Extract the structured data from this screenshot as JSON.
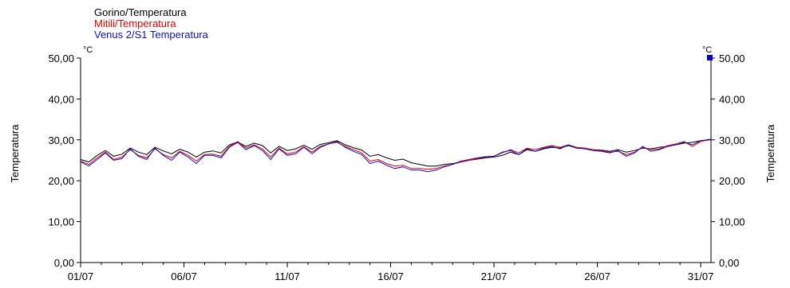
{
  "chart_data": {
    "type": "line",
    "title": "",
    "ylabel_left": "Temperatura",
    "ylabel_right": "Temperatura",
    "unit": "°C",
    "ylim": [
      0,
      50
    ],
    "xlim": [
      0,
      30.5
    ],
    "grid": false,
    "legend_position": "top-left",
    "y_ticks": [
      0,
      10,
      20,
      30,
      40,
      50
    ],
    "y_tick_labels": [
      "0,00",
      "10,00",
      "20,00",
      "30,00",
      "40,00",
      "50,00"
    ],
    "x_tick_days": [
      0,
      5,
      10,
      15,
      20,
      25,
      30
    ],
    "x_tick_labels": [
      "01/07",
      "06/07",
      "11/07",
      "16/07",
      "21/07",
      "26/07",
      "31/07"
    ],
    "right_marker_value": 50,
    "series": [
      {
        "name": "Gorino/Temperatura",
        "color": "#000000",
        "points": [
          [
            0,
            25.2
          ],
          [
            0.4,
            24.6
          ],
          [
            0.8,
            26.2
          ],
          [
            1.2,
            27.4
          ],
          [
            1.6,
            26.0
          ],
          [
            2.0,
            26.5
          ],
          [
            2.4,
            28.0
          ],
          [
            2.8,
            27.0
          ],
          [
            3.2,
            26.4
          ],
          [
            3.6,
            28.2
          ],
          [
            4.0,
            27.3
          ],
          [
            4.4,
            26.6
          ],
          [
            4.8,
            27.7
          ],
          [
            5.2,
            27.0
          ],
          [
            5.6,
            25.8
          ],
          [
            6.0,
            27.0
          ],
          [
            6.4,
            27.3
          ],
          [
            6.8,
            26.8
          ],
          [
            7.2,
            28.8
          ],
          [
            7.6,
            29.5
          ],
          [
            8.0,
            28.4
          ],
          [
            8.4,
            29.2
          ],
          [
            8.8,
            28.6
          ],
          [
            9.2,
            26.8
          ],
          [
            9.6,
            28.4
          ],
          [
            10.0,
            27.4
          ],
          [
            10.4,
            27.8
          ],
          [
            10.8,
            28.7
          ],
          [
            11.2,
            27.7
          ],
          [
            11.6,
            28.9
          ],
          [
            12.0,
            29.3
          ],
          [
            12.4,
            29.8
          ],
          [
            12.8,
            28.8
          ],
          [
            13.2,
            28.1
          ],
          [
            13.6,
            27.5
          ],
          [
            14.0,
            26.0
          ],
          [
            14.4,
            26.4
          ],
          [
            14.8,
            25.6
          ],
          [
            15.2,
            25.0
          ],
          [
            15.6,
            25.3
          ],
          [
            16.0,
            24.4
          ],
          [
            16.4,
            24.0
          ],
          [
            16.8,
            23.6
          ],
          [
            17.2,
            23.6
          ],
          [
            17.6,
            24.0
          ],
          [
            18.0,
            24.2
          ],
          [
            18.4,
            24.6
          ],
          [
            18.8,
            25.0
          ],
          [
            19.2,
            25.3
          ],
          [
            19.6,
            25.6
          ],
          [
            20.0,
            25.8
          ],
          [
            20.4,
            26.2
          ],
          [
            20.8,
            27.0
          ],
          [
            21.2,
            26.4
          ],
          [
            21.6,
            27.6
          ],
          [
            22.0,
            27.2
          ],
          [
            22.4,
            27.8
          ],
          [
            22.8,
            28.2
          ],
          [
            23.2,
            28.0
          ],
          [
            23.6,
            28.6
          ],
          [
            24.0,
            28.0
          ],
          [
            24.4,
            27.9
          ],
          [
            24.8,
            27.6
          ],
          [
            25.2,
            27.5
          ],
          [
            25.6,
            27.2
          ],
          [
            26.0,
            27.6
          ],
          [
            26.4,
            27.0
          ],
          [
            26.8,
            27.4
          ],
          [
            27.2,
            28.0
          ],
          [
            27.6,
            27.8
          ],
          [
            28.0,
            28.2
          ],
          [
            28.4,
            28.4
          ],
          [
            28.8,
            28.8
          ],
          [
            29.2,
            29.2
          ],
          [
            29.6,
            29.4
          ],
          [
            30.0,
            29.8
          ],
          [
            30.5,
            30.0
          ]
        ]
      },
      {
        "name": "Mitili/Temperatura",
        "color": "#e00000",
        "points": [
          [
            0,
            24.8
          ],
          [
            0.4,
            24.0
          ],
          [
            0.8,
            25.6
          ],
          [
            1.2,
            27.0
          ],
          [
            1.6,
            25.2
          ],
          [
            2.0,
            25.8
          ],
          [
            2.4,
            27.6
          ],
          [
            2.8,
            26.2
          ],
          [
            3.2,
            25.6
          ],
          [
            3.6,
            27.8
          ],
          [
            4.0,
            26.4
          ],
          [
            4.4,
            25.6
          ],
          [
            4.8,
            27.2
          ],
          [
            5.2,
            26.2
          ],
          [
            5.6,
            24.8
          ],
          [
            6.0,
            26.4
          ],
          [
            6.4,
            26.5
          ],
          [
            6.8,
            26.0
          ],
          [
            7.2,
            28.4
          ],
          [
            7.6,
            29.6
          ],
          [
            8.0,
            28.0
          ],
          [
            8.4,
            28.8
          ],
          [
            8.8,
            27.8
          ],
          [
            9.2,
            25.8
          ],
          [
            9.6,
            28.0
          ],
          [
            10.0,
            26.6
          ],
          [
            10.4,
            27.0
          ],
          [
            10.8,
            28.3
          ],
          [
            11.2,
            27.0
          ],
          [
            11.6,
            28.4
          ],
          [
            12.0,
            29.0
          ],
          [
            12.4,
            29.4
          ],
          [
            12.8,
            28.4
          ],
          [
            13.2,
            27.6
          ],
          [
            13.6,
            26.8
          ],
          [
            14.0,
            24.8
          ],
          [
            14.4,
            25.2
          ],
          [
            14.8,
            24.2
          ],
          [
            15.2,
            23.6
          ],
          [
            15.6,
            23.8
          ],
          [
            16.0,
            23.0
          ],
          [
            16.4,
            23.0
          ],
          [
            16.8,
            22.8
          ],
          [
            17.2,
            23.0
          ],
          [
            17.6,
            23.6
          ],
          [
            18.0,
            24.0
          ],
          [
            18.4,
            24.6
          ],
          [
            18.8,
            25.0
          ],
          [
            19.2,
            25.4
          ],
          [
            19.6,
            25.8
          ],
          [
            20.0,
            26.0
          ],
          [
            20.4,
            26.8
          ],
          [
            20.8,
            27.6
          ],
          [
            21.2,
            26.8
          ],
          [
            21.6,
            28.0
          ],
          [
            22.0,
            27.6
          ],
          [
            22.4,
            28.2
          ],
          [
            22.8,
            28.6
          ],
          [
            23.2,
            28.2
          ],
          [
            23.6,
            28.8
          ],
          [
            24.0,
            28.2
          ],
          [
            24.4,
            28.0
          ],
          [
            24.8,
            27.6
          ],
          [
            25.2,
            27.4
          ],
          [
            25.6,
            27.0
          ],
          [
            26.0,
            27.2
          ],
          [
            26.4,
            26.4
          ],
          [
            26.8,
            27.0
          ],
          [
            27.2,
            28.2
          ],
          [
            27.6,
            27.6
          ],
          [
            28.0,
            27.8
          ],
          [
            28.4,
            28.6
          ],
          [
            28.8,
            29.0
          ],
          [
            29.2,
            29.6
          ],
          [
            29.6,
            28.4
          ],
          [
            30.0,
            29.6
          ],
          [
            30.5,
            30.1
          ]
        ]
      },
      {
        "name": "Venus 2/S1 Temperatura",
        "color": "#1010c0",
        "points": [
          [
            0,
            24.6
          ],
          [
            0.4,
            23.6
          ],
          [
            0.8,
            25.2
          ],
          [
            1.2,
            26.8
          ],
          [
            1.6,
            25.0
          ],
          [
            2.0,
            25.4
          ],
          [
            2.4,
            27.8
          ],
          [
            2.8,
            26.0
          ],
          [
            3.2,
            25.2
          ],
          [
            3.6,
            28.0
          ],
          [
            4.0,
            26.2
          ],
          [
            4.4,
            25.0
          ],
          [
            4.8,
            27.0
          ],
          [
            5.2,
            25.8
          ],
          [
            5.6,
            24.2
          ],
          [
            6.0,
            26.2
          ],
          [
            6.4,
            26.2
          ],
          [
            6.8,
            25.6
          ],
          [
            7.2,
            28.2
          ],
          [
            7.6,
            29.4
          ],
          [
            8.0,
            27.6
          ],
          [
            8.4,
            28.6
          ],
          [
            8.8,
            27.4
          ],
          [
            9.2,
            25.2
          ],
          [
            9.6,
            27.8
          ],
          [
            10.0,
            26.2
          ],
          [
            10.4,
            26.6
          ],
          [
            10.8,
            28.2
          ],
          [
            11.2,
            26.6
          ],
          [
            11.6,
            28.2
          ],
          [
            12.0,
            29.0
          ],
          [
            12.4,
            29.6
          ],
          [
            12.8,
            28.2
          ],
          [
            13.2,
            27.2
          ],
          [
            13.6,
            26.4
          ],
          [
            14.0,
            24.2
          ],
          [
            14.4,
            24.8
          ],
          [
            14.8,
            23.8
          ],
          [
            15.2,
            23.0
          ],
          [
            15.6,
            23.4
          ],
          [
            16.0,
            22.6
          ],
          [
            16.4,
            22.6
          ],
          [
            16.8,
            22.2
          ],
          [
            17.2,
            22.6
          ],
          [
            17.6,
            23.4
          ],
          [
            18.0,
            24.0
          ],
          [
            18.4,
            24.8
          ],
          [
            18.8,
            25.2
          ],
          [
            19.2,
            25.6
          ],
          [
            19.6,
            25.9
          ],
          [
            20.0,
            26.0
          ],
          [
            20.4,
            27.0
          ],
          [
            20.8,
            27.4
          ],
          [
            21.2,
            26.4
          ],
          [
            21.6,
            27.8
          ],
          [
            22.0,
            27.2
          ],
          [
            22.4,
            28.0
          ],
          [
            22.8,
            28.4
          ],
          [
            23.2,
            27.8
          ],
          [
            23.6,
            28.8
          ],
          [
            24.0,
            28.0
          ],
          [
            24.4,
            27.8
          ],
          [
            24.8,
            27.4
          ],
          [
            25.2,
            27.2
          ],
          [
            25.6,
            26.8
          ],
          [
            26.0,
            27.4
          ],
          [
            26.4,
            26.0
          ],
          [
            26.8,
            26.8
          ],
          [
            27.2,
            28.4
          ],
          [
            27.6,
            27.2
          ],
          [
            28.0,
            27.6
          ],
          [
            28.4,
            28.4
          ],
          [
            28.8,
            28.8
          ],
          [
            29.2,
            29.4
          ],
          [
            29.6,
            28.8
          ],
          [
            30.0,
            29.8
          ],
          [
            30.5,
            30.2
          ]
        ]
      }
    ]
  }
}
